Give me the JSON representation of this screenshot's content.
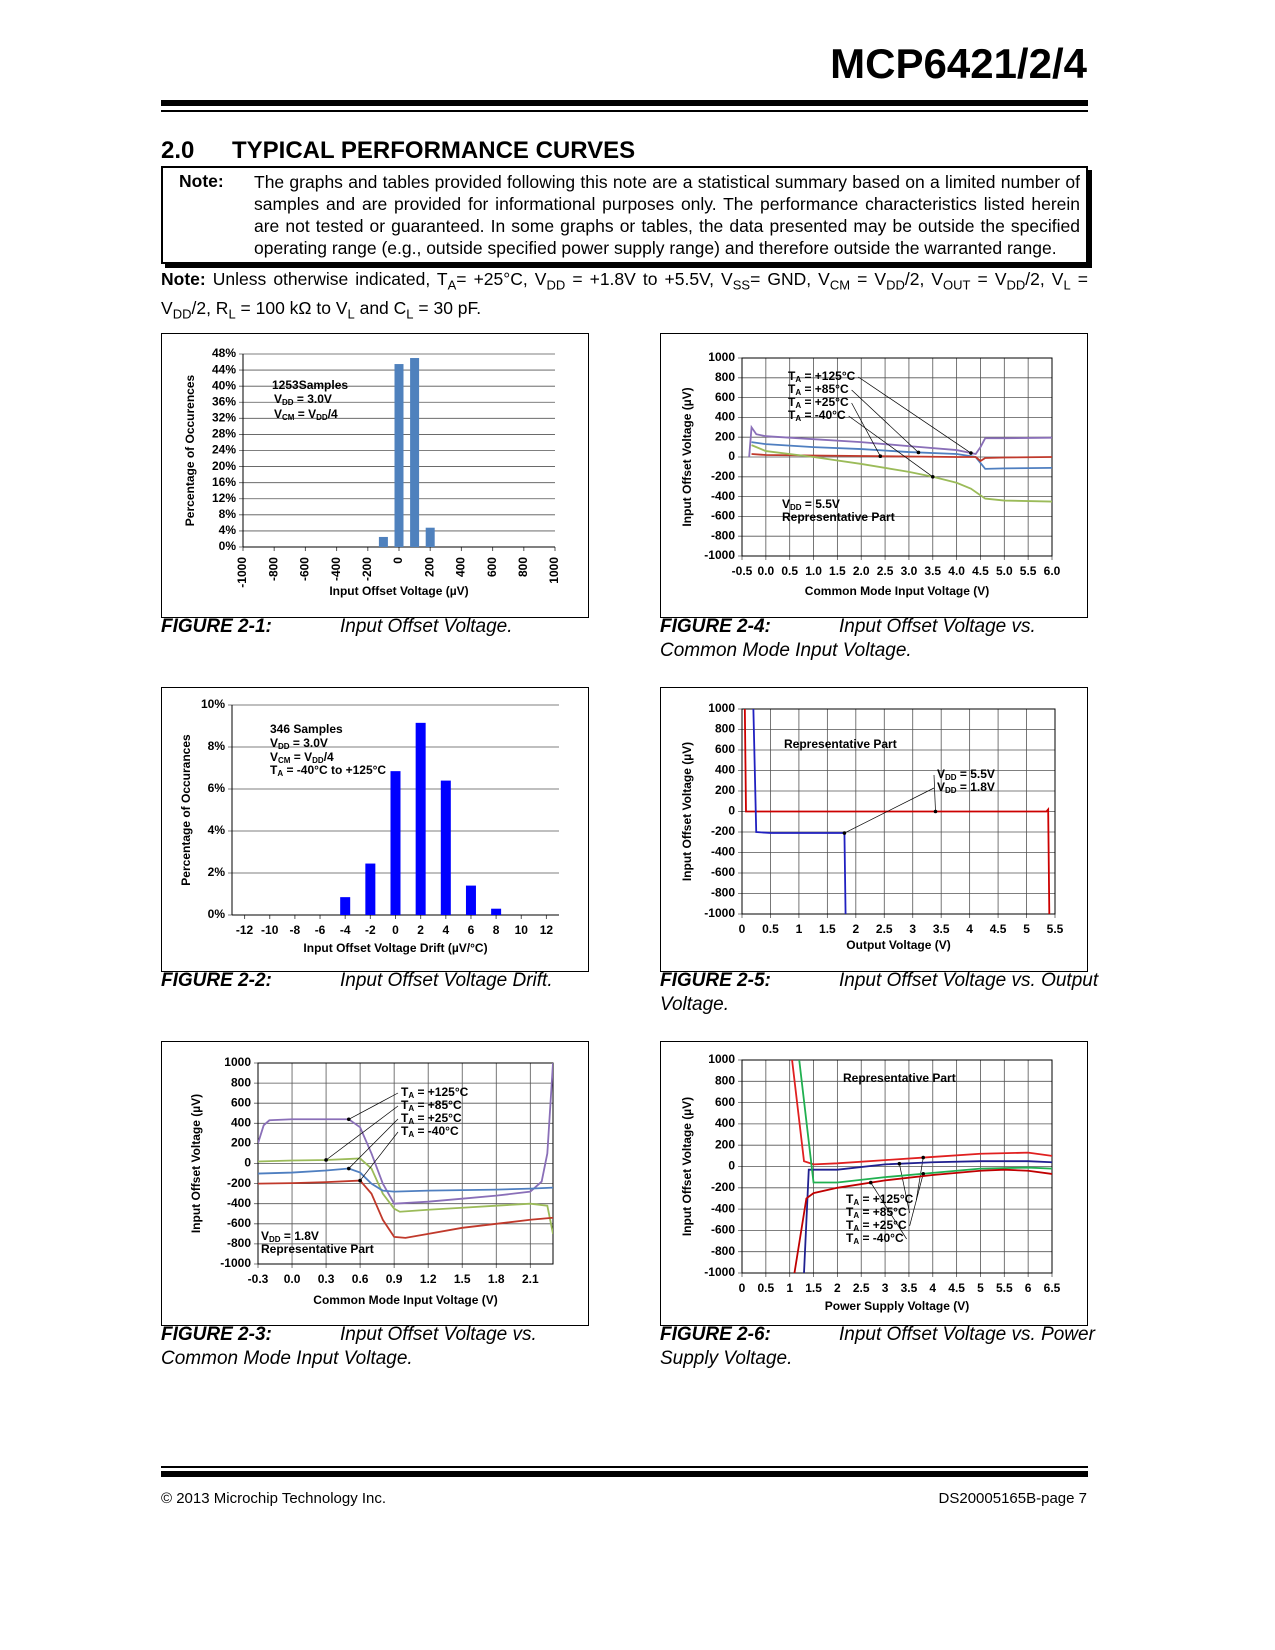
{
  "header": {
    "title": "MCP6421/2/4"
  },
  "section": {
    "number": "2.0",
    "title": "TYPICAL PERFORMANCE CURVES"
  },
  "note": {
    "label": "Note:",
    "text": "The graphs and tables provided following this note are a statistical summary based on a limited number of samples and are provided for informational purposes only. The performance characteristics listed herein are not tested or guaranteed. In some graphs or tables, the data presented may be outside the specified operating range (e.g., outside specified power supply range) and therefore outside the warranted range."
  },
  "conditions": {
    "label": "Note:",
    "runs": [
      "Unless otherwise indicated, T",
      "A",
      "= +25°C, V",
      "DD",
      " = +1.8V to +5.5V, V",
      "SS",
      "= GND, V",
      "CM",
      " = V",
      "DD",
      "/2, V",
      "OUT",
      " = V",
      "DD",
      "/2, V",
      "L",
      " = V",
      "DD",
      "/2, R",
      "L",
      " = 100 kΩ to V",
      "L",
      " and C",
      "L",
      " = 30 pF."
    ]
  },
  "chart_data": [
    {
      "type": "bar",
      "figure": "FIGURE 2-1:",
      "caption": "Input Offset Voltage.",
      "xlabel": "Input Offset Voltage (µV)",
      "ylabel": "Percentage of Occurences",
      "x": [
        -100,
        0,
        100,
        200
      ],
      "values": [
        2.5,
        45.5,
        47,
        4.8
      ],
      "color": "#4f81bd",
      "xlim": [
        -1000,
        1000
      ],
      "xticks": [
        -1000,
        -800,
        -600,
        -400,
        -200,
        0,
        200,
        400,
        600,
        800,
        1000
      ],
      "ylim": [
        0,
        48
      ],
      "yticks": [
        {
          "value": 0,
          "label": "0%"
        },
        {
          "value": 4,
          "label": "4%"
        },
        {
          "value": 8,
          "label": "8%"
        },
        {
          "value": 12,
          "label": "12%"
        },
        {
          "value": 16,
          "label": "16%"
        },
        {
          "value": 20,
          "label": "20%"
        },
        {
          "value": 24,
          "label": "24%"
        },
        {
          "value": 28,
          "label": "28%"
        },
        {
          "value": 32,
          "label": "32%"
        },
        {
          "value": 36,
          "label": "36%"
        },
        {
          "value": 40,
          "label": "40%"
        },
        {
          "value": 44,
          "label": "44%"
        },
        {
          "value": 48,
          "label": "48%"
        }
      ],
      "grid": "y",
      "annotations": [
        [
          "1253Samples"
        ],
        [
          "V",
          "DD",
          " = 3.0V"
        ],
        [
          "V",
          "CM",
          " = V",
          "DD",
          "/4"
        ]
      ]
    },
    {
      "type": "bar",
      "figure": "FIGURE 2-2:",
      "caption": "Input Offset Voltage Drift.",
      "xlabel": "Input Offset Voltage Drift (µV/°C)",
      "ylabel": "Percentage of Occurances",
      "x": [
        -4,
        -2,
        0,
        2,
        4,
        6,
        8
      ],
      "values": [
        0.85,
        2.45,
        6.85,
        9.15,
        6.4,
        1.4,
        0.3
      ],
      "color": "#0000ff",
      "xlim": [
        -13,
        13
      ],
      "xticks": [
        -12,
        -10,
        -8,
        -6,
        -4,
        -2,
        0,
        2,
        4,
        6,
        8,
        10,
        12
      ],
      "ylim": [
        0,
        10
      ],
      "yticks": [
        {
          "value": 0,
          "label": "0%"
        },
        {
          "value": 2,
          "label": "2%"
        },
        {
          "value": 4,
          "label": "4%"
        },
        {
          "value": 6,
          "label": "6%"
        },
        {
          "value": 8,
          "label": "8%"
        },
        {
          "value": 10,
          "label": "10%"
        }
      ],
      "grid": "y",
      "annotations": [
        [
          "346 Samples"
        ],
        [
          "V",
          "DD",
          " = 3.0V"
        ],
        [
          "V",
          "CM",
          " = V",
          "DD",
          "/4"
        ],
        [
          "T",
          "A",
          " = -40°C to +125°C"
        ]
      ]
    },
    {
      "type": "line",
      "figure": "FIGURE 2-3:",
      "caption": "Input Offset Voltage vs. Common Mode Input Voltage.",
      "xlabel": "Common Mode Input Voltage (V)",
      "ylabel": "Input Offset Voltage (µV)",
      "xlim": [
        -0.3,
        2.3
      ],
      "xticks": [
        -0.3,
        {
          "value": 0,
          "label": "0.0"
        },
        0.3,
        0.6,
        0.9,
        1.2,
        1.5,
        1.8,
        2.1
      ],
      "ylim": [
        -1000,
        1000
      ],
      "yticks": [
        -1000,
        -800,
        -600,
        -400,
        -200,
        0,
        200,
        400,
        600,
        800,
        1000
      ],
      "grid": "both",
      "series": [
        {
          "name": [
            "T",
            "A",
            " = +125°C"
          ],
          "color": "#8a6fb8",
          "x": [
            -0.3,
            -0.25,
            -0.2,
            0,
            0.3,
            0.5,
            0.6,
            0.7,
            0.8,
            0.9,
            1.2,
            1.5,
            1.8,
            2.1,
            2.2,
            2.25,
            2.3
          ],
          "values": [
            200,
            380,
            430,
            440,
            440,
            440,
            360,
            100,
            -200,
            -400,
            -380,
            -350,
            -320,
            -280,
            -180,
            100,
            1000
          ]
        },
        {
          "name": [
            "T",
            "A",
            " = +85°C"
          ],
          "color": "#9bbb59",
          "x": [
            -0.3,
            0,
            0.3,
            0.6,
            0.7,
            0.8,
            0.9,
            0.95,
            1.2,
            1.5,
            1.8,
            2.1,
            2.25,
            2.3
          ],
          "values": [
            20,
            30,
            35,
            50,
            -50,
            -300,
            -450,
            -480,
            -460,
            -440,
            -420,
            -400,
            -420,
            -700
          ]
        },
        {
          "name": [
            "T",
            "A",
            " = +25°C"
          ],
          "color": "#4f7fc0",
          "x": [
            -0.3,
            0,
            0.3,
            0.5,
            0.6,
            0.7,
            0.8,
            0.9,
            1.2,
            1.5,
            1.8,
            2.1,
            2.3
          ],
          "values": [
            -100,
            -90,
            -70,
            -50,
            -90,
            -200,
            -270,
            -280,
            -270,
            -265,
            -260,
            -250,
            -240
          ]
        },
        {
          "name": [
            "T",
            "A",
            " = -40°C"
          ],
          "color": "#c0392b",
          "x": [
            -0.3,
            0,
            0.3,
            0.6,
            0.7,
            0.8,
            0.9,
            1.0,
            1.2,
            1.5,
            1.8,
            2.1,
            2.3
          ],
          "values": [
            -200,
            -195,
            -185,
            -170,
            -300,
            -560,
            -730,
            -740,
            -700,
            -640,
            -600,
            -560,
            -540
          ]
        }
      ],
      "annotations": [
        [
          "V",
          "DD",
          " = 1.8V"
        ],
        [
          "Representative Part"
        ]
      ]
    },
    {
      "type": "line",
      "figure": "FIGURE 2-4:",
      "caption": "Input Offset Voltage vs. Common Mode Input Voltage.",
      "xlabel": "Common Mode Input Voltage (V)",
      "ylabel": "Input Offset Voltage (µV)",
      "xlim": [
        -0.5,
        6
      ],
      "xticks": [
        -0.5,
        {
          "value": 0,
          "label": "0.0"
        },
        0.5,
        {
          "value": 1,
          "label": "1.0"
        },
        1.5,
        {
          "value": 2,
          "label": "2.0"
        },
        2.5,
        {
          "value": 3,
          "label": "3.0"
        },
        3.5,
        {
          "value": 4,
          "label": "4.0"
        },
        4.5,
        {
          "value": 5,
          "label": "5.0"
        },
        5.5,
        {
          "value": 6,
          "label": "6.0"
        }
      ],
      "ylim": [
        -1000,
        1000
      ],
      "yticks": [
        -1000,
        -800,
        -600,
        -400,
        -200,
        0,
        200,
        400,
        600,
        800,
        1000
      ],
      "grid": "both",
      "series": [
        {
          "name": [
            "T",
            "A",
            " = +125°C"
          ],
          "color": "#8a6fb8",
          "x": [
            -0.35,
            -0.3,
            -0.2,
            0,
            1,
            2,
            3,
            4,
            4.4,
            4.5,
            4.6,
            5,
            6
          ],
          "values": [
            0,
            300,
            230,
            210,
            180,
            150,
            110,
            70,
            30,
            100,
            190,
            190,
            195
          ]
        },
        {
          "name": [
            "T",
            "A",
            " = +85°C"
          ],
          "color": "#4f7fc0",
          "x": [
            -0.3,
            0,
            1,
            2,
            3,
            4,
            4.4,
            4.5,
            4.6,
            5,
            6
          ],
          "values": [
            150,
            130,
            100,
            80,
            50,
            30,
            0,
            -60,
            -120,
            -115,
            -110
          ]
        },
        {
          "name": [
            "T",
            "A",
            " = +25°C"
          ],
          "color": "#c0392b",
          "x": [
            -0.3,
            0,
            1,
            2,
            3,
            4,
            4.4,
            4.5,
            4.6,
            5,
            6
          ],
          "values": [
            30,
            20,
            15,
            10,
            5,
            0,
            0,
            -40,
            -10,
            -5,
            0
          ]
        },
        {
          "name": [
            "T",
            "A",
            " = -40°C"
          ],
          "color": "#9bbb59",
          "x": [
            -0.3,
            0,
            1,
            2,
            3,
            3.5,
            4,
            4.3,
            4.6,
            5,
            6
          ],
          "values": [
            120,
            60,
            0,
            -70,
            -150,
            -200,
            -260,
            -320,
            -420,
            -440,
            -450
          ]
        }
      ],
      "annotations": [
        [
          "V",
          "DD",
          " = 5.5V"
        ],
        [
          "Representative Part"
        ]
      ]
    },
    {
      "type": "line",
      "figure": "FIGURE 2-5:",
      "caption": "Input Offset Voltage vs. Output Voltage.",
      "xlabel": "Output Voltage (V)",
      "ylabel": "Input Offset Voltage (µV)",
      "xlim": [
        0,
        5.5
      ],
      "xticks": [
        0,
        0.5,
        1,
        1.5,
        2,
        2.5,
        3,
        3.5,
        4,
        4.5,
        5,
        5.5
      ],
      "ylim": [
        -1000,
        1000
      ],
      "yticks": [
        -1000,
        -800,
        -600,
        -400,
        -200,
        0,
        200,
        400,
        600,
        800,
        1000
      ],
      "grid": "both",
      "series": [
        {
          "name": [
            "V",
            "DD",
            " = 5.5V"
          ],
          "color": "#cc0000",
          "x": [
            0.05,
            0.07,
            1,
            2,
            3,
            4,
            5,
            5.35,
            5.38,
            5.4
          ],
          "values": [
            1000,
            0,
            0,
            0,
            0,
            0,
            0,
            0,
            20,
            -1000
          ]
        },
        {
          "name": [
            "V",
            "DD",
            " = 1.8V"
          ],
          "color": "#2020c0",
          "x": [
            0.2,
            0.25,
            0.5,
            1,
            1.5,
            1.8,
            1.82
          ],
          "values": [
            1000,
            -200,
            -210,
            -210,
            -210,
            -210,
            -1000
          ]
        }
      ],
      "annotations": [
        [
          "Representative Part"
        ]
      ]
    },
    {
      "type": "line",
      "figure": "FIGURE 2-6:",
      "caption": "Input Offset Voltage vs. Power Supply Voltage.",
      "xlabel": "Power Supply Voltage (V)",
      "ylabel": "Input Offset Voltage (µV)",
      "xlim": [
        0,
        6.5
      ],
      "xticks": [
        0,
        0.5,
        1,
        1.5,
        2,
        2.5,
        3,
        3.5,
        4,
        4.5,
        5,
        5.5,
        6,
        6.5
      ],
      "ylim": [
        -1000,
        1000
      ],
      "yticks": [
        -1000,
        -800,
        -600,
        -400,
        -200,
        0,
        200,
        400,
        600,
        800,
        1000
      ],
      "grid": "both",
      "series": [
        {
          "name": [
            "T",
            "A",
            " = +125°C"
          ],
          "color": "#e02020",
          "x": [
            1.05,
            1.3,
            1.5,
            2,
            3,
            4,
            5,
            6,
            6.5
          ],
          "values": [
            1000,
            50,
            20,
            30,
            60,
            90,
            120,
            130,
            100
          ]
        },
        {
          "name": [
            "T",
            "A",
            " = +85°C"
          ],
          "color": "#202090",
          "x": [
            1.3,
            1.4,
            2,
            3,
            4,
            5,
            6,
            6.5
          ],
          "values": [
            -1000,
            -30,
            -30,
            20,
            40,
            50,
            50,
            40
          ]
        },
        {
          "name": [
            "T",
            "A",
            " = +25°C"
          ],
          "color": "#20b050",
          "x": [
            1.2,
            1.5,
            2,
            3,
            4,
            5,
            6,
            6.5
          ],
          "values": [
            1000,
            -150,
            -150,
            -100,
            -60,
            -20,
            -10,
            -20
          ]
        },
        {
          "name": [
            "T",
            "A",
            " = -40°C"
          ],
          "color": "#c00000",
          "x": [
            1.1,
            1.35,
            1.5,
            2,
            3,
            4,
            5,
            5.5,
            6,
            6.5
          ],
          "values": [
            -1000,
            -300,
            -250,
            -200,
            -130,
            -80,
            -40,
            -30,
            -40,
            -70
          ]
        }
      ],
      "annotations": [
        [
          "Representative Part"
        ]
      ]
    }
  ],
  "footer": {
    "left": "© 2013 Microchip Technology Inc.",
    "right": "DS20005165B-page 7"
  }
}
